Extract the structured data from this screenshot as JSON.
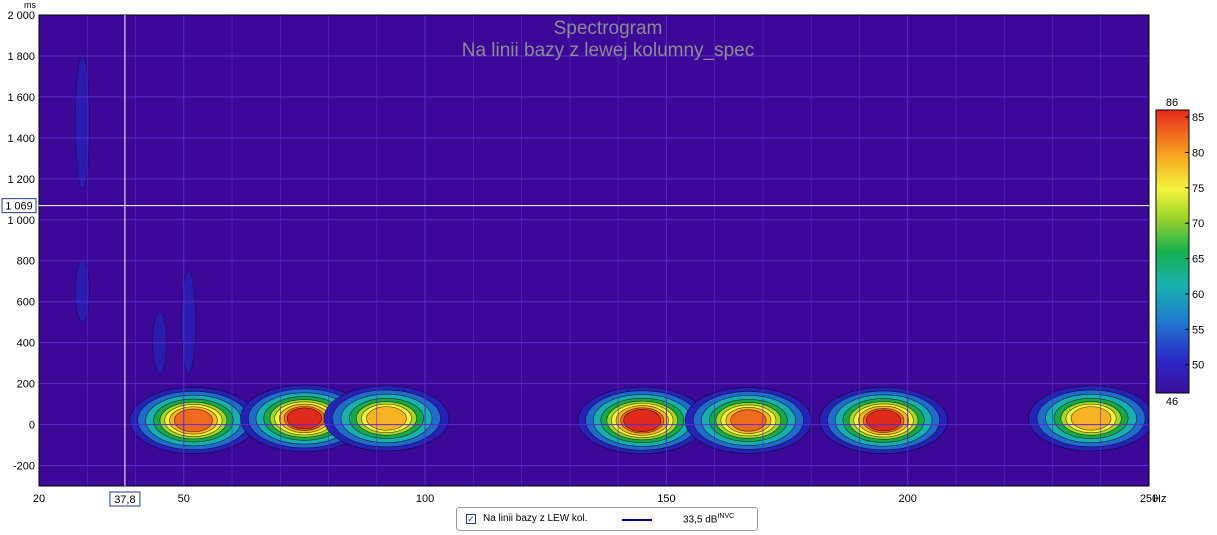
{
  "chart_data": {
    "type": "heatmap",
    "title": "Spectrogram",
    "subtitle": "Na linii bazy z lewej kolumny_spec",
    "xlabel": "",
    "ylabel": "",
    "x_unit": "Hz",
    "y_unit": "ms",
    "xlim": [
      20,
      250
    ],
    "ylim": [
      -300,
      2000
    ],
    "x_ticks": [
      {
        "value": 20,
        "label": "20"
      },
      {
        "value": 50,
        "label": "50"
      },
      {
        "value": 100,
        "label": "100"
      },
      {
        "value": 150,
        "label": "150"
      },
      {
        "value": 200,
        "label": "200"
      },
      {
        "value": 250,
        "label": "250"
      }
    ],
    "y_ticks": [
      {
        "value": 2000,
        "label": "2 000"
      },
      {
        "value": 1800,
        "label": "1 800"
      },
      {
        "value": 1600,
        "label": "1 600"
      },
      {
        "value": 1400,
        "label": "1 400"
      },
      {
        "value": 1200,
        "label": "1 200"
      },
      {
        "value": 1000,
        "label": "1 000"
      },
      {
        "value": 800,
        "label": "800"
      },
      {
        "value": 600,
        "label": "600"
      },
      {
        "value": 400,
        "label": "400"
      },
      {
        "value": 200,
        "label": "200"
      },
      {
        "value": 0,
        "label": "0"
      },
      {
        "value": -200,
        "label": "-200"
      }
    ],
    "grid": true,
    "cursor": {
      "x": 37.8,
      "x_label": "37,8",
      "y": 1069,
      "y_label": "1 069"
    },
    "colorbar": {
      "min": 46,
      "max": 86,
      "min_label": "46",
      "max_label": "86",
      "ticks": [
        {
          "value": 85,
          "label": "85"
        },
        {
          "value": 80,
          "label": "80"
        },
        {
          "value": 75,
          "label": "75"
        },
        {
          "value": 70,
          "label": "70"
        },
        {
          "value": 65,
          "label": "65"
        },
        {
          "value": 60,
          "label": "60"
        },
        {
          "value": 55,
          "label": "55"
        },
        {
          "value": 50,
          "label": "50"
        }
      ]
    },
    "hotspots_db": [
      {
        "freq": 52,
        "time": 20,
        "level": 84
      },
      {
        "freq": 75,
        "time": 30,
        "level": 85
      },
      {
        "freq": 92,
        "time": 30,
        "level": 81
      },
      {
        "freq": 145,
        "time": 20,
        "level": 86
      },
      {
        "freq": 167,
        "time": 20,
        "level": 83
      },
      {
        "freq": 195,
        "time": 20,
        "level": 85
      },
      {
        "freq": 238,
        "time": 30,
        "level": 81
      }
    ]
  },
  "legend": {
    "checked": true,
    "check_mark": "✓",
    "series_name": "Na linii bazy z LEW kol.",
    "series_color": "#00008b",
    "value_text": "33,5 dB",
    "value_sup": "INVC"
  },
  "colors": {
    "background": "#3c0897",
    "grid": "#5a2bd0",
    "cursor": "#ffffff"
  }
}
